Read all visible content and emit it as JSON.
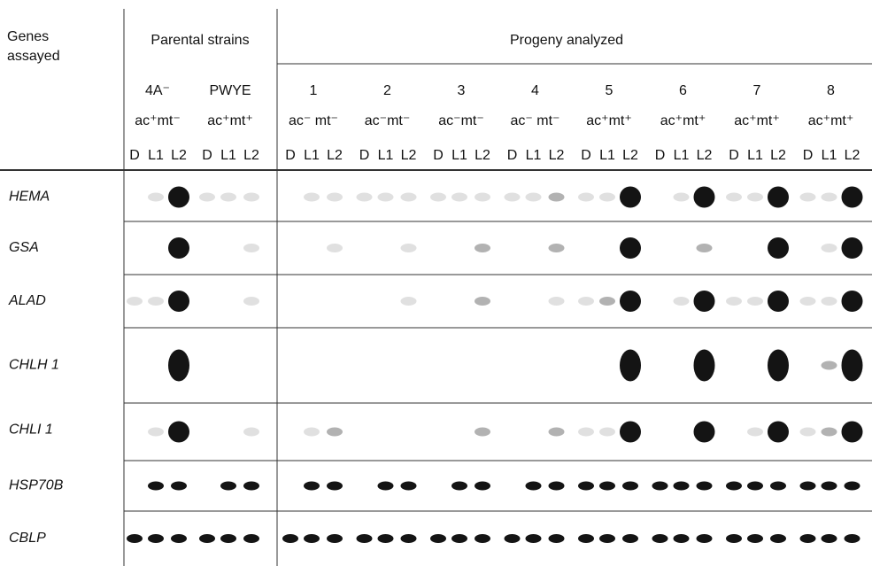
{
  "header": {
    "genes_label": "Genes assayed",
    "parental": "Parental strains",
    "progeny": "Progeny analyzed"
  },
  "strains": [
    {
      "name": "4A⁻",
      "genotype": "ac⁺mt⁻",
      "lanes": [
        "D",
        "L1",
        "L2"
      ]
    },
    {
      "name": "PWYE",
      "genotype": "ac⁺mt⁺",
      "lanes": [
        "D",
        "L1",
        "L2"
      ]
    },
    {
      "name": "1",
      "genotype": "ac⁻ mt⁻",
      "lanes": [
        "D",
        "L1",
        "L2"
      ]
    },
    {
      "name": "2",
      "genotype": "ac⁻mt⁻",
      "lanes": [
        "D",
        "L1",
        "L2"
      ]
    },
    {
      "name": "3",
      "genotype": "ac⁻mt⁻",
      "lanes": [
        "D",
        "L1",
        "L2"
      ]
    },
    {
      "name": "4",
      "genotype": "ac⁻ mt⁻",
      "lanes": [
        "D",
        "L1",
        "L2"
      ]
    },
    {
      "name": "5",
      "genotype": "ac⁺mt⁺",
      "lanes": [
        "D",
        "L1",
        "L2"
      ]
    },
    {
      "name": "6",
      "genotype": "ac⁺mt⁺",
      "lanes": [
        "D",
        "L1",
        "L2"
      ]
    },
    {
      "name": "7",
      "genotype": "ac⁺mt⁺",
      "lanes": [
        "D",
        "L1",
        "L2"
      ]
    },
    {
      "name": "8",
      "genotype": "ac⁺mt⁺",
      "lanes": [
        "D",
        "L1",
        "L2"
      ]
    }
  ],
  "genes": [
    "HEMA",
    "GSA",
    "ALAD",
    "CHLH 1",
    "CHLI 1",
    "HSP70B",
    "CBLP"
  ]
}
